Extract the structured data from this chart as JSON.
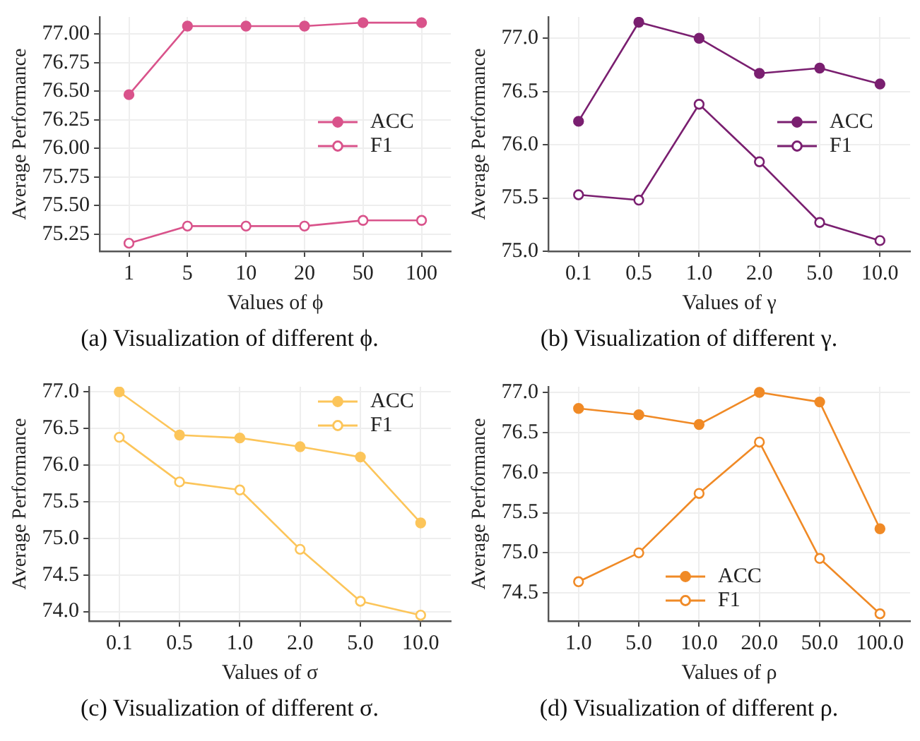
{
  "chart_data": [
    {
      "type": "line",
      "xlabel": "Values of ϕ",
      "ylabel": "Average Performance",
      "annotations": [
        "(a) Visualization of different ϕ."
      ],
      "categories": [
        "1",
        "5",
        "10",
        "20",
        "50",
        "100"
      ],
      "series": [
        {
          "name": "ACC",
          "color": "#d9538b",
          "values": [
            76.47,
            77.07,
            77.07,
            77.07,
            77.1,
            77.1
          ]
        },
        {
          "name": "F1",
          "color": "#d9538b",
          "values": [
            75.17,
            75.32,
            75.32,
            75.32,
            75.37,
            75.37
          ]
        }
      ],
      "ylim": [
        75.1,
        77.15
      ],
      "yticks": [
        {
          "value": 75.25,
          "label": "75.25"
        },
        {
          "value": 75.5,
          "label": "75.50"
        },
        {
          "value": 75.75,
          "label": "75.75"
        },
        {
          "value": 76,
          "label": "76.00"
        },
        {
          "value": 76.25,
          "label": "76.25"
        },
        {
          "value": 76.5,
          "label": "76.50"
        },
        {
          "value": 76.75,
          "label": "76.75"
        },
        {
          "value": 77,
          "label": "77.00"
        }
      ],
      "grid": true,
      "legend": "right",
      "marker": "circle",
      "line_style": "solid"
    },
    {
      "type": "line",
      "xlabel": "Values of γ",
      "ylabel": "Average Performance",
      "annotations": [
        "(b) Visualization of different γ."
      ],
      "categories": [
        "0.1",
        "0.5",
        "1.0",
        "2.0",
        "5.0",
        "10.0"
      ],
      "series": [
        {
          "name": "ACC",
          "color": "#7a1f70",
          "values": [
            76.22,
            77.15,
            77.0,
            76.67,
            76.72,
            76.57
          ]
        },
        {
          "name": "F1",
          "color": "#7a1f70",
          "values": [
            75.53,
            75.48,
            76.38,
            75.84,
            75.27,
            75.1
          ]
        }
      ],
      "ylim": [
        75.0,
        77.2
      ],
      "yticks": [
        {
          "value": 75,
          "label": "75.0"
        },
        {
          "value": 75.5,
          "label": "75.5"
        },
        {
          "value": 76,
          "label": "76.0"
        },
        {
          "value": 76.5,
          "label": "76.5"
        },
        {
          "value": 77,
          "label": "77.0"
        }
      ],
      "grid": true,
      "legend": "right",
      "marker": "circle",
      "line_style": "solid"
    },
    {
      "type": "line",
      "xlabel": "Values of σ",
      "ylabel": "Average Performance",
      "annotations": [
        "(c) Visualization of different σ."
      ],
      "categories": [
        "0.1",
        "0.5",
        "1.0",
        "2.0",
        "5.0",
        "10.0"
      ],
      "series": [
        {
          "name": "ACC",
          "color": "#fcc55a",
          "values": [
            77.0,
            76.41,
            76.37,
            76.25,
            76.11,
            75.21
          ]
        },
        {
          "name": "F1",
          "color": "#fcc55a",
          "values": [
            76.38,
            75.77,
            75.66,
            74.85,
            74.14,
            73.95
          ]
        }
      ],
      "ylim": [
        73.87,
        77.07
      ],
      "yticks": [
        {
          "value": 74,
          "label": "74.0"
        },
        {
          "value": 74.5,
          "label": "74.5"
        },
        {
          "value": 75,
          "label": "75.0"
        },
        {
          "value": 75.5,
          "label": "75.5"
        },
        {
          "value": 76,
          "label": "76.0"
        },
        {
          "value": 76.5,
          "label": "76.5"
        },
        {
          "value": 77,
          "label": "77.0"
        }
      ],
      "grid": true,
      "legend": "top right",
      "marker": "circle",
      "line_style": "solid"
    },
    {
      "type": "line",
      "xlabel": "Values of ρ",
      "ylabel": "Average Performance",
      "annotations": [
        "(d) Visualization of different ρ."
      ],
      "categories": [
        "1.0",
        "5.0",
        "10.0",
        "20.0",
        "50.0",
        "100.0"
      ],
      "series": [
        {
          "name": "ACC",
          "color": "#f08a26",
          "values": [
            76.8,
            76.72,
            76.6,
            77.0,
            76.88,
            75.3
          ]
        },
        {
          "name": "F1",
          "color": "#f08a26",
          "values": [
            74.64,
            75.0,
            75.74,
            76.38,
            74.93,
            74.24
          ]
        }
      ],
      "ylim": [
        74.15,
        77.07
      ],
      "yticks": [
        {
          "value": 74.5,
          "label": "74.5"
        },
        {
          "value": 75,
          "label": "75.0"
        },
        {
          "value": 75.5,
          "label": "75.5"
        },
        {
          "value": 76,
          "label": "76.0"
        },
        {
          "value": 76.5,
          "label": "76.5"
        },
        {
          "value": 77,
          "label": "77.0"
        }
      ],
      "grid": true,
      "legend": "bottom",
      "marker": "circle",
      "line_style": "solid"
    }
  ]
}
